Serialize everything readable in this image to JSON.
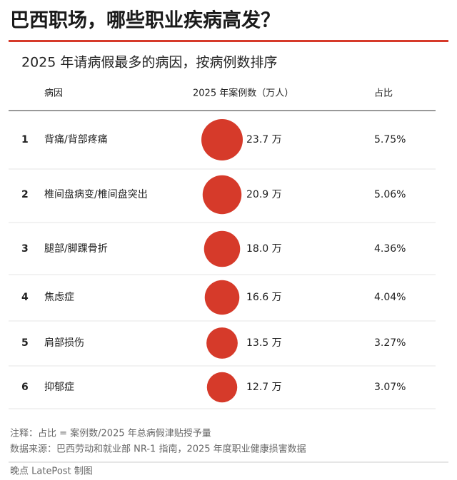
{
  "header": {
    "title": "巴西职场，哪些职业疾病高发？",
    "subtitle": "2025 年请病假最多的病因，按病例数排序"
  },
  "table": {
    "columns": [
      "病因",
      "2025 年案例数（万人）",
      "占比"
    ],
    "color": "#d63a2a",
    "rows": [
      {
        "rank": "1",
        "cause": "背痛/背部疼痛",
        "cases": 23.7,
        "cases_label": "23.7 万",
        "share": "5.75%"
      },
      {
        "rank": "2",
        "cause": "椎间盘病变/椎间盘突出",
        "cases": 20.9,
        "cases_label": "20.9 万",
        "share": "5.06%"
      },
      {
        "rank": "3",
        "cause": "腿部/脚踝骨折",
        "cases": 18.0,
        "cases_label": "18.0 万",
        "share": "4.36%"
      },
      {
        "rank": "4",
        "cause": "焦虑症",
        "cases": 16.6,
        "cases_label": "16.6 万",
        "share": "4.04%"
      },
      {
        "rank": "5",
        "cause": "肩部损伤",
        "cases": 13.5,
        "cases_label": "13.5 万",
        "share": "3.27%"
      },
      {
        "rank": "6",
        "cause": "抑郁症",
        "cases": 12.7,
        "cases_label": "12.7 万",
        "share": "3.07%"
      }
    ]
  },
  "notes": [
    "注释：占比 = 案例数/2025 年总病假津贴授予量",
    "数据来源：巴西劳动和就业部 NR-1 指南，2025 年度职业健康损害数据"
  ],
  "credit": "晚点 LatePost 制图"
}
